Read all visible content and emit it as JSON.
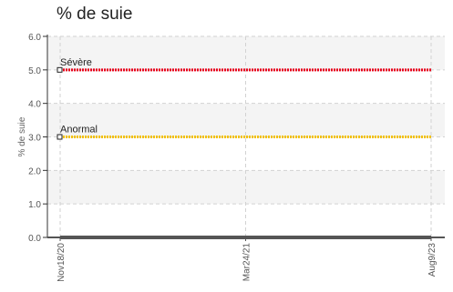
{
  "chart_data": {
    "type": "line",
    "title": "% de suie",
    "ylabel": "% de suie",
    "xlabel": "",
    "x_ticks": [
      "Nov18/20",
      "Mar24/21",
      "Aug9/23"
    ],
    "y_ticks": [
      "0.0",
      "1.0",
      "2.0",
      "3.0",
      "4.0",
      "5.0",
      "6.0"
    ],
    "ylim": [
      0,
      6
    ],
    "grid": true,
    "thresholds": [
      {
        "label": "Sévère",
        "value": 5.0,
        "color": "#e8001c"
      },
      {
        "label": "Anormal",
        "value": 3.0,
        "color": "#f2c100"
      }
    ],
    "series": [
      {
        "x": [
          "Nov18/20",
          "Mar24/21",
          "Aug9/23"
        ],
        "values": [
          0,
          0,
          0
        ],
        "color": "#555555"
      }
    ]
  }
}
